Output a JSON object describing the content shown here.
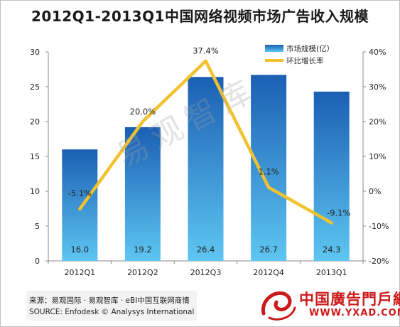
{
  "title": "2012Q1-2013Q1中国网络视频市场广告收入规模",
  "watermark": "易观智库",
  "footer": {
    "line1": "来源：易观国际 · 易观智库 · eBI中国互联网商情",
    "line2": "SOURCE: Enfodesk © Analysys International"
  },
  "logo": {
    "text": "中国廣告門戶網",
    "url": "WWW.YXAD.COM"
  },
  "colors": {
    "bar_top": "#1b5fb3",
    "bar_bottom": "#5ec6f2",
    "line": "#f2c12e",
    "logo_red": "#cc1a1a"
  },
  "chart_data": {
    "type": "bar",
    "categories": [
      "2012Q1",
      "2012Q2",
      "2012Q3",
      "2012Q4",
      "2013Q1"
    ],
    "series": [
      {
        "name": "市场规模(亿）",
        "type": "bar",
        "axis": "left",
        "values": [
          16.0,
          19.2,
          26.4,
          26.7,
          24.3
        ]
      },
      {
        "name": "环比增长率",
        "type": "line",
        "axis": "right",
        "values": [
          -5.1,
          20.0,
          37.4,
          1.1,
          -9.1
        ]
      }
    ],
    "bar_labels": [
      "16.0",
      "19.2",
      "26.4",
      "26.7",
      "24.3"
    ],
    "line_labels": [
      "-5.1%",
      "20.0%",
      "37.4%",
      "1.1%",
      "-9.1%"
    ],
    "y_left": {
      "min": 0,
      "max": 30,
      "ticks": [
        "0",
        "5",
        "10",
        "15",
        "20",
        "25",
        "30"
      ]
    },
    "y_right": {
      "min": -20,
      "max": 40,
      "ticks": [
        "-20%",
        "-10%",
        "0%",
        "10%",
        "20%",
        "30%",
        "40%"
      ]
    },
    "legend_position": "top-right",
    "grid": false
  }
}
